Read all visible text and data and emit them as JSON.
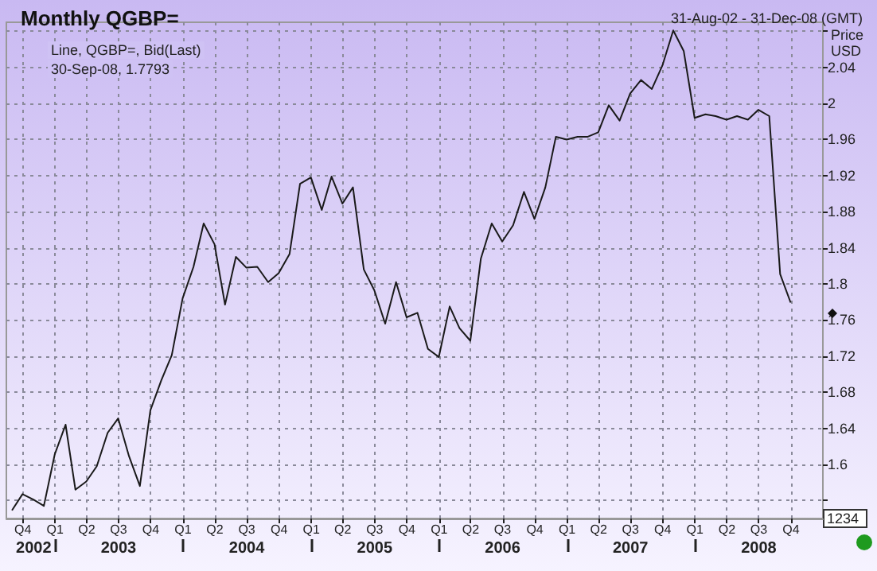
{
  "chart_data": {
    "type": "line",
    "title": "Monthly QGBP=",
    "subtitle": "31-Aug-02 - 31-Dec-08 (GMT)",
    "ylabel": "Price USD",
    "annotations": [
      "Line, QGBP=, Bid(Last)",
      "30-Sep-08, 1.7793",
      "1234"
    ],
    "x": [
      "2002-08-31",
      "2002-09-30",
      "2002-10-31",
      "2002-11-30",
      "2002-12-31",
      "2003-01-31",
      "2003-02-28",
      "2003-03-31",
      "2003-04-30",
      "2003-05-31",
      "2003-06-30",
      "2003-07-31",
      "2003-08-31",
      "2003-09-30",
      "2003-10-31",
      "2003-11-30",
      "2003-12-31",
      "2004-01-31",
      "2004-02-29",
      "2004-03-31",
      "2004-04-30",
      "2004-05-31",
      "2004-06-30",
      "2004-07-31",
      "2004-08-31",
      "2004-09-30",
      "2004-10-31",
      "2004-11-30",
      "2004-12-31",
      "2005-01-31",
      "2005-02-28",
      "2005-03-31",
      "2005-04-30",
      "2005-05-31",
      "2005-06-30",
      "2005-07-31",
      "2005-08-31",
      "2005-09-30",
      "2005-10-31",
      "2005-11-30",
      "2005-12-31",
      "2006-01-31",
      "2006-02-28",
      "2006-03-31",
      "2006-04-30",
      "2006-05-31",
      "2006-06-30",
      "2006-07-31",
      "2006-08-31",
      "2006-09-30",
      "2006-10-31",
      "2006-11-30",
      "2006-12-31",
      "2007-01-31",
      "2007-02-28",
      "2007-03-31",
      "2007-04-30",
      "2007-05-31",
      "2007-06-30",
      "2007-07-31",
      "2007-08-31",
      "2007-09-30",
      "2007-10-31",
      "2007-11-30",
      "2007-12-31",
      "2008-01-31",
      "2008-02-29",
      "2008-03-31",
      "2008-04-30",
      "2008-05-31",
      "2008-06-30",
      "2008-07-31",
      "2008-08-31",
      "2008-09-30"
    ],
    "series": [
      {
        "color": "#1a1a1a",
        "values": [
          1.549,
          1.567,
          1.561,
          1.554,
          1.611,
          1.644,
          1.572,
          1.581,
          1.598,
          1.635,
          1.651,
          1.609,
          1.576,
          1.66,
          1.693,
          1.721,
          1.784,
          1.819,
          1.867,
          1.844,
          1.777,
          1.83,
          1.818,
          1.819,
          1.802,
          1.812,
          1.833,
          1.911,
          1.918,
          1.882,
          1.919,
          1.889,
          1.907,
          1.816,
          1.793,
          1.756,
          1.802,
          1.763,
          1.768,
          1.728,
          1.719,
          1.775,
          1.751,
          1.737,
          1.828,
          1.867,
          1.847,
          1.865,
          1.902,
          1.872,
          1.907,
          1.963,
          1.96,
          1.963,
          1.963,
          1.968,
          1.998,
          1.981,
          2.011,
          2.026,
          2.016,
          2.042,
          2.081,
          2.058,
          1.984,
          1.988,
          1.986,
          1.982,
          1.986,
          1.982,
          1.993,
          1.986,
          1.811,
          1.7793
        ]
      }
    ],
    "xlim": [
      "2002-08-15",
      "2008-12-31"
    ],
    "xticks": [
      {
        "value": "2002-10-01",
        "label": "Q4"
      },
      {
        "value": "2003-01-01",
        "label": "Q1"
      },
      {
        "value": "2003-04-01",
        "label": "Q2"
      },
      {
        "value": "2003-07-01",
        "label": "Q3"
      },
      {
        "value": "2003-10-01",
        "label": "Q4"
      },
      {
        "value": "2004-01-01",
        "label": "Q1"
      },
      {
        "value": "2004-04-01",
        "label": "Q2"
      },
      {
        "value": "2004-07-01",
        "label": "Q3"
      },
      {
        "value": "2004-10-01",
        "label": "Q4"
      },
      {
        "value": "2005-01-01",
        "label": "Q1"
      },
      {
        "value": "2005-04-01",
        "label": "Q2"
      },
      {
        "value": "2005-07-01",
        "label": "Q3"
      },
      {
        "value": "2005-10-01",
        "label": "Q4"
      },
      {
        "value": "2006-01-01",
        "label": "Q1"
      },
      {
        "value": "2006-04-01",
        "label": "Q2"
      },
      {
        "value": "2006-07-01",
        "label": "Q3"
      },
      {
        "value": "2006-10-01",
        "label": "Q4"
      },
      {
        "value": "2007-01-01",
        "label": "Q1"
      },
      {
        "value": "2007-04-01",
        "label": "Q2"
      },
      {
        "value": "2007-07-01",
        "label": "Q3"
      },
      {
        "value": "2007-10-01",
        "label": "Q4"
      },
      {
        "value": "2008-01-01",
        "label": "Q1"
      },
      {
        "value": "2008-04-01",
        "label": "Q2"
      },
      {
        "value": "2008-07-01",
        "label": "Q3"
      },
      {
        "value": "2008-10-01",
        "label": "Q4"
      }
    ],
    "x2lim": [
      "2002-08-15",
      "2008-12-31"
    ],
    "x2ticks": [
      {
        "value": "2002-11-01",
        "label": "2002"
      },
      {
        "value": "2003-01-01",
        "label": null
      },
      {
        "value": "2003-07-01",
        "label": "2003"
      },
      {
        "value": "2004-01-01",
        "label": null
      },
      {
        "value": "2004-07-01",
        "label": "2004"
      },
      {
        "value": "2005-01-01",
        "label": null
      },
      {
        "value": "2005-07-01",
        "label": "2005"
      },
      {
        "value": "2006-01-01",
        "label": null
      },
      {
        "value": "2006-07-01",
        "label": "2006"
      },
      {
        "value": "2007-01-01",
        "label": null
      },
      {
        "value": "2007-07-01",
        "label": "2007"
      },
      {
        "value": "2008-01-01",
        "label": null
      },
      {
        "value": "2008-07-01",
        "label": "2008"
      }
    ],
    "ylim": [
      1.54,
      2.09
    ],
    "yticks": [
      {
        "value": 1.56,
        "label": null
      },
      1.6,
      1.64,
      1.68,
      1.72,
      1.76,
      1.8,
      1.84,
      1.88,
      1.92,
      1.96,
      2,
      2.04,
      {
        "value": 2.08,
        "label": null
      }
    ],
    "grid": true,
    "line_style": "solid",
    "marker": "none"
  }
}
